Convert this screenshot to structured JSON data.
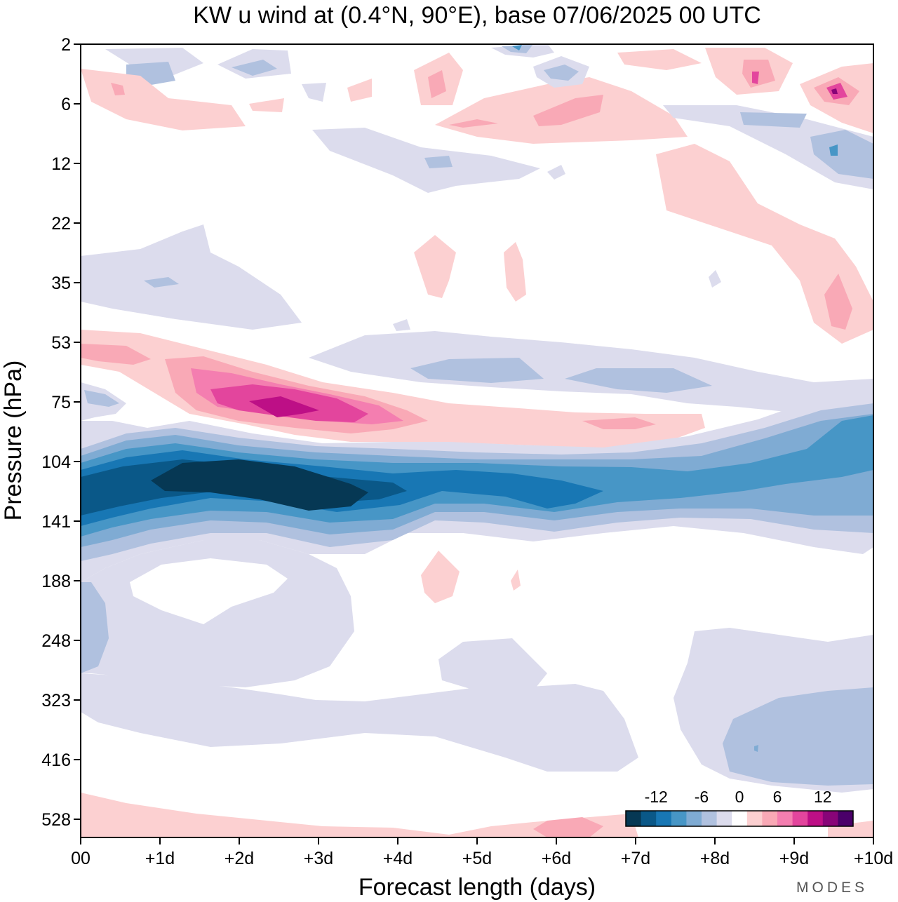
{
  "chart_data": {
    "type": "heatmap",
    "title": "KW u wind at (0.4°N, 90°E),  base 07/06/2025  00 UTC",
    "xlabel": "Forecast length (days)",
    "ylabel": "Pressure (hPa)",
    "x_ticks": [
      "00",
      "+1d",
      "+2d",
      "+3d",
      "+4d",
      "+5d",
      "+6d",
      "+7d",
      "+8d",
      "+9d",
      "+10d"
    ],
    "y_ticks": [
      "2",
      "6",
      "12",
      "22",
      "35",
      "53",
      "75",
      "104",
      "141",
      "188",
      "248",
      "323",
      "416",
      "528"
    ],
    "xlim": [
      0,
      10
    ],
    "y_scale": "log (pressure, top = 2 hPa)",
    "colorbar": {
      "labels": [
        "-12",
        "-6",
        "0",
        "6",
        "12"
      ],
      "levels": [
        -16,
        -14,
        -12,
        -10,
        -8,
        -6,
        -4,
        -2,
        2,
        4,
        6,
        8,
        10,
        12,
        14,
        16
      ],
      "colors": [
        "#063854",
        "#0a5888",
        "#1877b4",
        "#4796c6",
        "#7fabd3",
        "#b0c1df",
        "#dcdced",
        "#ffffff",
        "#fcd0d1",
        "#f9a9b6",
        "#f47eb0",
        "#e3459d",
        "#bd0f86",
        "#880478",
        "#4a0069"
      ],
      "position": "bottom-right"
    },
    "features": [
      {
        "name": "easterly jet core",
        "day_start": 1,
        "day_end": 3.6,
        "pressure_hPa": 120,
        "u_ms": -16
      },
      {
        "name": "easterly band",
        "day_start": 0,
        "day_end": 10,
        "pressure_hPa": 110,
        "u_ms": -10
      },
      {
        "name": "westerly maximum",
        "day_start": 2,
        "day_end": 3.5,
        "pressure_hPa": 75,
        "u_ms": 12
      },
      {
        "name": "westerly upper stratosphere",
        "day_start": 9,
        "day_end": 10,
        "pressure_hPa": 5,
        "u_ms": 10
      }
    ]
  },
  "brand": "MODES"
}
